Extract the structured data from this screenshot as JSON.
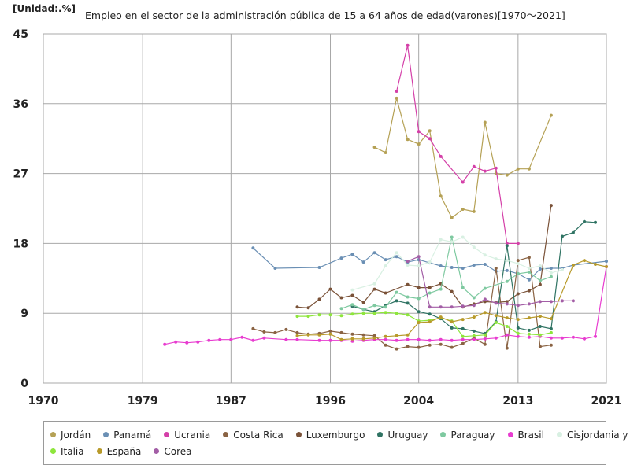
{
  "unit_label": "[Unidad:.%]",
  "chart_data": {
    "type": "line",
    "title": "Empleo en el sector de la administración pública de 15 a 64 años de edad(varones)[1970～2021]",
    "xlabel": "",
    "ylabel": "",
    "xlim": [
      1970,
      2021
    ],
    "ylim": [
      0,
      45
    ],
    "x_ticks": [
      "1970",
      "1979",
      "1987",
      "1996",
      "2004",
      "2013",
      "2021"
    ],
    "y_ticks": [
      "0",
      "9",
      "18",
      "27",
      "36",
      "45"
    ],
    "grid": true,
    "legend_position": "bottom",
    "series": [
      {
        "name": "Jordán",
        "color": "#b5a155",
        "points": [
          [
            2000,
            30.4
          ],
          [
            2001,
            29.7
          ],
          [
            2002,
            36.7
          ],
          [
            2003,
            31.4
          ],
          [
            2004,
            30.8
          ],
          [
            2005,
            32.5
          ],
          [
            2006,
            24.1
          ],
          [
            2007,
            21.3
          ],
          [
            2008,
            22.4
          ],
          [
            2009,
            22.1
          ],
          [
            2010,
            33.6
          ],
          [
            2011,
            27.0
          ],
          [
            2012,
            26.8
          ],
          [
            2013,
            27.6
          ],
          [
            2014,
            27.6
          ],
          [
            2016,
            34.5
          ]
        ]
      },
      {
        "name": "Panamá",
        "color": "#6a8fb4",
        "points": [
          [
            1989,
            17.4
          ],
          [
            1991,
            14.8
          ],
          [
            1995,
            14.9
          ],
          [
            1997,
            16.1
          ],
          [
            1998,
            16.6
          ],
          [
            1999,
            15.6
          ],
          [
            2000,
            16.8
          ],
          [
            2001,
            15.9
          ],
          [
            2002,
            16.3
          ],
          [
            2003,
            15.6
          ],
          [
            2004,
            15.9
          ],
          [
            2005,
            15.5
          ],
          [
            2006,
            15.1
          ],
          [
            2007,
            14.9
          ],
          [
            2008,
            14.8
          ],
          [
            2009,
            15.2
          ],
          [
            2010,
            15.3
          ],
          [
            2011,
            14.4
          ],
          [
            2012,
            14.5
          ],
          [
            2013,
            14.1
          ],
          [
            2014,
            13.3
          ],
          [
            2015,
            14.7
          ],
          [
            2016,
            14.8
          ],
          [
            2017,
            14.8
          ],
          [
            2018,
            15.2
          ],
          [
            2021,
            15.7
          ]
        ]
      },
      {
        "name": "Ucrania",
        "color": "#d43fa8",
        "points": [
          [
            2002,
            37.6
          ],
          [
            2003,
            43.5
          ],
          [
            2004,
            32.4
          ],
          [
            2005,
            31.5
          ],
          [
            2006,
            29.2
          ],
          [
            2008,
            25.9
          ],
          [
            2009,
            27.9
          ],
          [
            2010,
            27.3
          ],
          [
            2011,
            27.7
          ],
          [
            2012,
            18.0
          ],
          [
            2013,
            18.0
          ]
        ]
      },
      {
        "name": "Costa Rica",
        "color": "#8a6343",
        "points": [
          [
            1989,
            7.0
          ],
          [
            1990,
            6.6
          ],
          [
            1991,
            6.5
          ],
          [
            1992,
            6.9
          ],
          [
            1993,
            6.5
          ],
          [
            1994,
            6.3
          ],
          [
            1995,
            6.4
          ],
          [
            1996,
            6.7
          ],
          [
            1997,
            6.5
          ],
          [
            1998,
            6.3
          ],
          [
            1999,
            6.2
          ],
          [
            2000,
            6.1
          ],
          [
            2001,
            4.9
          ],
          [
            2002,
            4.4
          ],
          [
            2003,
            4.7
          ],
          [
            2004,
            4.6
          ],
          [
            2005,
            4.9
          ],
          [
            2006,
            5.0
          ],
          [
            2007,
            4.6
          ],
          [
            2008,
            5.1
          ],
          [
            2009,
            5.8
          ],
          [
            2010,
            5.0
          ],
          [
            2011,
            14.8
          ],
          [
            2012,
            4.5
          ],
          [
            2013,
            15.8
          ],
          [
            2014,
            16.2
          ],
          [
            2015,
            4.7
          ],
          [
            2016,
            4.9
          ]
        ]
      },
      {
        "name": "Luxemburgo",
        "color": "#7a5238",
        "points": [
          [
            1993,
            9.8
          ],
          [
            1994,
            9.7
          ],
          [
            1995,
            10.8
          ],
          [
            1996,
            12.1
          ],
          [
            1997,
            11.0
          ],
          [
            1998,
            11.3
          ],
          [
            1999,
            10.4
          ],
          [
            2000,
            12.1
          ],
          [
            2001,
            11.6
          ],
          [
            2003,
            12.7
          ],
          [
            2004,
            12.3
          ],
          [
            2005,
            12.3
          ],
          [
            2006,
            12.8
          ],
          [
            2007,
            11.8
          ],
          [
            2008,
            9.8
          ],
          [
            2009,
            10.2
          ],
          [
            2010,
            10.5
          ],
          [
            2011,
            10.4
          ],
          [
            2012,
            10.5
          ],
          [
            2013,
            11.5
          ],
          [
            2014,
            11.9
          ],
          [
            2015,
            12.7
          ],
          [
            2016,
            22.9
          ]
        ]
      },
      {
        "name": "Uruguay",
        "color": "#2f7363",
        "points": [
          [
            1998,
            9.9
          ],
          [
            1999,
            9.5
          ],
          [
            2000,
            9.2
          ],
          [
            2001,
            10.0
          ],
          [
            2002,
            10.6
          ],
          [
            2003,
            10.3
          ],
          [
            2004,
            9.2
          ],
          [
            2005,
            8.9
          ],
          [
            2006,
            8.3
          ],
          [
            2007,
            7.1
          ],
          [
            2008,
            7.0
          ],
          [
            2009,
            6.7
          ],
          [
            2010,
            6.4
          ],
          [
            2011,
            7.9
          ],
          [
            2012,
            17.7
          ],
          [
            2013,
            7.1
          ],
          [
            2014,
            6.8
          ],
          [
            2015,
            7.3
          ],
          [
            2016,
            7.0
          ],
          [
            2017,
            18.9
          ],
          [
            2018,
            19.4
          ],
          [
            2019,
            20.8
          ],
          [
            2020,
            20.7
          ]
        ]
      },
      {
        "name": "Paraguay",
        "color": "#7ec9a0",
        "points": [
          [
            1997,
            9.6
          ],
          [
            1998,
            10.1
          ],
          [
            1999,
            9.5
          ],
          [
            2000,
            10.0
          ],
          [
            2001,
            9.8
          ],
          [
            2002,
            11.7
          ],
          [
            2003,
            11.1
          ],
          [
            2004,
            10.9
          ],
          [
            2005,
            11.6
          ],
          [
            2006,
            12.1
          ],
          [
            2007,
            18.8
          ],
          [
            2008,
            12.3
          ],
          [
            2009,
            11.0
          ],
          [
            2010,
            12.2
          ],
          [
            2012,
            13.1
          ],
          [
            2013,
            14.1
          ],
          [
            2014,
            14.3
          ],
          [
            2015,
            13.2
          ],
          [
            2016,
            13.7
          ]
        ]
      },
      {
        "name": "Brasil",
        "color": "#e83cd0",
        "points": [
          [
            1981,
            5.0
          ],
          [
            1982,
            5.3
          ],
          [
            1983,
            5.2
          ],
          [
            1984,
            5.3
          ],
          [
            1985,
            5.5
          ],
          [
            1986,
            5.6
          ],
          [
            1987,
            5.6
          ],
          [
            1988,
            5.9
          ],
          [
            1989,
            5.5
          ],
          [
            1990,
            5.8
          ],
          [
            1992,
            5.6
          ],
          [
            1993,
            5.6
          ],
          [
            1995,
            5.5
          ],
          [
            1996,
            5.5
          ],
          [
            1997,
            5.5
          ],
          [
            1998,
            5.4
          ],
          [
            1999,
            5.5
          ],
          [
            2000,
            5.6
          ],
          [
            2001,
            5.6
          ],
          [
            2002,
            5.5
          ],
          [
            2003,
            5.6
          ],
          [
            2004,
            5.6
          ],
          [
            2005,
            5.5
          ],
          [
            2006,
            5.6
          ],
          [
            2007,
            5.5
          ],
          [
            2008,
            5.6
          ],
          [
            2009,
            5.6
          ],
          [
            2010,
            5.7
          ],
          [
            2011,
            5.8
          ],
          [
            2012,
            6.2
          ],
          [
            2013,
            6.0
          ],
          [
            2014,
            5.9
          ],
          [
            2015,
            6.0
          ],
          [
            2016,
            5.8
          ],
          [
            2017,
            5.8
          ],
          [
            2018,
            5.9
          ],
          [
            2019,
            5.7
          ],
          [
            2020,
            6.0
          ],
          [
            2021,
            15.0
          ]
        ]
      },
      {
        "name": "Cisjordania y Gaza",
        "color": "#d8f0e2",
        "points": [
          [
            1998,
            12.0
          ],
          [
            2000,
            12.8
          ],
          [
            2001,
            15.1
          ],
          [
            2002,
            16.8
          ],
          [
            2003,
            15.2
          ],
          [
            2004,
            15.1
          ],
          [
            2005,
            15.6
          ],
          [
            2006,
            18.5
          ],
          [
            2007,
            18.2
          ],
          [
            2008,
            18.8
          ],
          [
            2009,
            17.5
          ],
          [
            2010,
            16.5
          ],
          [
            2011,
            16.0
          ],
          [
            2012,
            15.8
          ],
          [
            2013,
            15.4
          ],
          [
            2014,
            14.8
          ],
          [
            2015,
            15.1
          ],
          [
            2016,
            14.2
          ],
          [
            2017,
            14.6
          ]
        ]
      },
      {
        "name": "Italia",
        "color": "#8ee63c",
        "points": [
          [
            1993,
            8.6
          ],
          [
            1994,
            8.6
          ],
          [
            1995,
            8.8
          ],
          [
            1996,
            8.8
          ],
          [
            1997,
            8.7
          ],
          [
            1998,
            8.9
          ],
          [
            1999,
            9.0
          ],
          [
            2000,
            9.0
          ],
          [
            2001,
            9.1
          ],
          [
            2002,
            9.0
          ],
          [
            2003,
            8.8
          ],
          [
            2004,
            8.0
          ],
          [
            2005,
            8.1
          ],
          [
            2006,
            8.4
          ],
          [
            2007,
            8.0
          ],
          [
            2008,
            6.0
          ],
          [
            2009,
            6.1
          ],
          [
            2010,
            6.2
          ],
          [
            2011,
            7.8
          ],
          [
            2012,
            7.3
          ],
          [
            2013,
            6.4
          ],
          [
            2014,
            6.3
          ],
          [
            2015,
            6.2
          ],
          [
            2016,
            6.5
          ]
        ]
      },
      {
        "name": "España",
        "color": "#b89a2a",
        "points": [
          [
            1993,
            6.1
          ],
          [
            1994,
            6.2
          ],
          [
            1995,
            6.2
          ],
          [
            1996,
            6.3
          ],
          [
            1997,
            5.6
          ],
          [
            1998,
            5.7
          ],
          [
            1999,
            5.7
          ],
          [
            2000,
            5.8
          ],
          [
            2001,
            6.0
          ],
          [
            2002,
            6.1
          ],
          [
            2003,
            6.2
          ],
          [
            2004,
            7.8
          ],
          [
            2005,
            7.9
          ],
          [
            2006,
            8.5
          ],
          [
            2007,
            7.9
          ],
          [
            2008,
            8.2
          ],
          [
            2009,
            8.5
          ],
          [
            2010,
            9.1
          ],
          [
            2011,
            8.7
          ],
          [
            2012,
            8.4
          ],
          [
            2013,
            8.2
          ],
          [
            2014,
            8.4
          ],
          [
            2015,
            8.6
          ],
          [
            2016,
            8.3
          ],
          [
            2018,
            15.2
          ],
          [
            2019,
            15.8
          ],
          [
            2020,
            15.3
          ],
          [
            2021,
            15.0
          ]
        ]
      },
      {
        "name": "Corea",
        "color": "#a35ea6",
        "points": [
          [
            2003,
            15.7
          ],
          [
            2004,
            16.3
          ],
          [
            2005,
            9.8
          ],
          [
            2006,
            9.8
          ],
          [
            2007,
            9.8
          ],
          [
            2008,
            9.9
          ],
          [
            2009,
            10.0
          ],
          [
            2010,
            10.8
          ],
          [
            2011,
            10.3
          ],
          [
            2012,
            10.2
          ],
          [
            2013,
            10.0
          ],
          [
            2014,
            10.2
          ],
          [
            2015,
            10.5
          ],
          [
            2016,
            10.5
          ],
          [
            2017,
            10.6
          ],
          [
            2018,
            10.6
          ]
        ]
      }
    ]
  }
}
